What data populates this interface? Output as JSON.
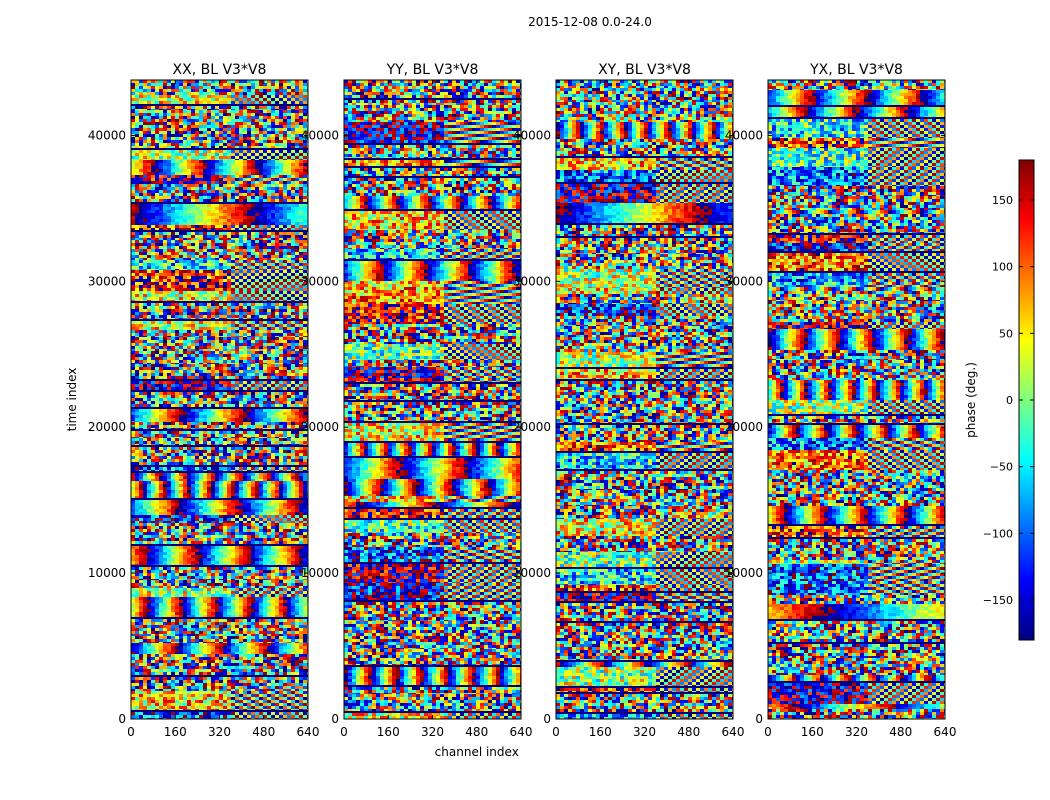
{
  "figure": {
    "suptitle": "2015-12-08 0.0-24.0"
  },
  "chart_data": [
    {
      "type": "heatmap",
      "title": "XX, BL V3*V8",
      "xlabel": "",
      "ylabel": "time index",
      "xlim": [
        0,
        640
      ],
      "ylim": [
        0,
        43800
      ],
      "xticks": [
        0,
        160,
        320,
        480,
        640
      ],
      "yticks": [
        0,
        10000,
        20000,
        30000,
        40000
      ],
      "value": "phase (deg.)"
    },
    {
      "type": "heatmap",
      "title": "YY, BL V3*V8",
      "xlabel": "channel index",
      "ylabel": "",
      "xlim": [
        0,
        640
      ],
      "ylim": [
        0,
        43800
      ],
      "xticks": [
        0,
        160,
        320,
        480,
        640
      ],
      "yticks": [
        0,
        10000,
        20000,
        30000,
        40000
      ],
      "value": "phase (deg.)"
    },
    {
      "type": "heatmap",
      "title": "XY, BL V3*V8",
      "xlabel": "",
      "ylabel": "",
      "xlim": [
        0,
        640
      ],
      "ylim": [
        0,
        43800
      ],
      "xticks": [
        0,
        160,
        320,
        480,
        640
      ],
      "yticks": [
        0,
        10000,
        20000,
        30000,
        40000
      ],
      "value": "phase (deg.)"
    },
    {
      "type": "heatmap",
      "title": "YX, BL V3*V8",
      "xlabel": "",
      "ylabel": "",
      "xlim": [
        0,
        640
      ],
      "ylim": [
        0,
        43800
      ],
      "xticks": [
        0,
        160,
        320,
        480,
        640
      ],
      "yticks": [
        0,
        10000,
        20000,
        30000,
        40000
      ],
      "value": "phase (deg.)"
    }
  ],
  "colorbar": {
    "label": "phase (deg.)",
    "range": [
      -180,
      180
    ],
    "ticks": [
      -150,
      -100,
      -50,
      0,
      50,
      100,
      150
    ],
    "tick_labels": [
      "−150",
      "−100",
      "−50",
      "0",
      "50",
      "100",
      "150"
    ],
    "colormap": [
      "#00007f",
      "#0000ff",
      "#007fff",
      "#00ffff",
      "#7fff7f",
      "#ffff00",
      "#ff7f00",
      "#ff0000",
      "#7f0000"
    ]
  },
  "colors": {
    "frame": "#000000",
    "background": "#ffffff"
  }
}
